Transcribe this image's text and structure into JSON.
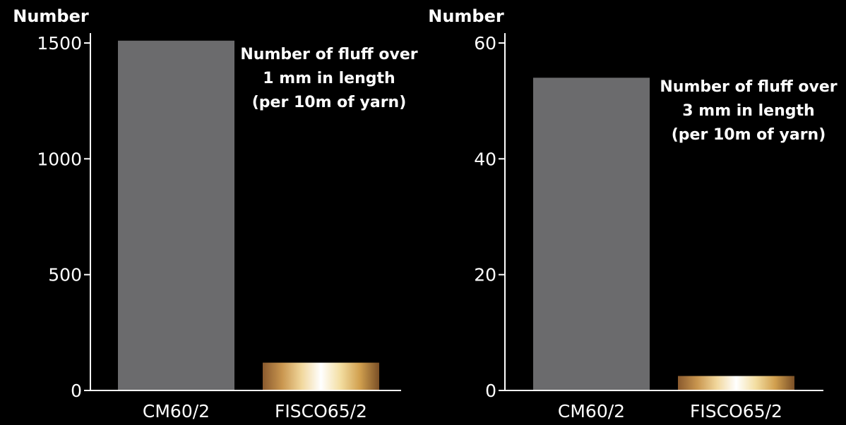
{
  "colors": {
    "background": "#000000",
    "axis": "#ffffff",
    "text": "#ffffff",
    "cm_bar": "#6b6b6d",
    "fisco_gradient": [
      "#8a5a2e",
      "#c9964f",
      "#f1d79c",
      "#ffffff",
      "#f3dea2",
      "#d1a04f",
      "#7a4f26"
    ]
  },
  "chart_data": [
    {
      "type": "bar",
      "ylabel": "Number",
      "xlabel": "",
      "categories": [
        "CM60/2",
        "FISCO65/2"
      ],
      "values": [
        1510,
        120
      ],
      "ylim": [
        0,
        1500
      ],
      "yticks": [
        0,
        500,
        1000,
        1500
      ],
      "ytick_labels": [
        "0",
        "500",
        "1000",
        "1500"
      ],
      "annotation_lines": [
        "Number of fluff over",
        "1 mm in length",
        "(per 10m of yarn)"
      ],
      "grid": false
    },
    {
      "type": "bar",
      "ylabel": "Number",
      "xlabel": "",
      "categories": [
        "CM60/2",
        "FISCO65/2"
      ],
      "values": [
        54,
        2.5
      ],
      "ylim": [
        0,
        60
      ],
      "yticks": [
        0,
        20,
        40,
        60
      ],
      "ytick_labels": [
        "0",
        "20",
        "40",
        "60"
      ],
      "annotation_lines": [
        "Number of fluff over",
        "3 mm in length",
        "(per 10m of yarn)"
      ],
      "grid": false
    }
  ]
}
